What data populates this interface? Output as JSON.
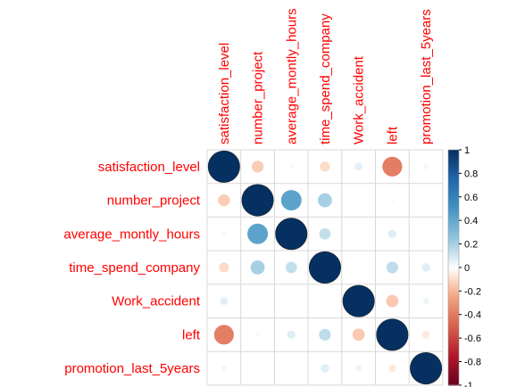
{
  "chart_data": {
    "type": "heatmap",
    "style": "corrplot-circle",
    "variables": [
      "satisfaction_level",
      "number_project",
      "average_montly_hours",
      "time_spend_company",
      "Work_accident",
      "left",
      "promotion_last_5years"
    ],
    "matrix": [
      [
        1.0,
        -0.14,
        0.02,
        -0.1,
        0.06,
        -0.39,
        0.03
      ],
      [
        -0.14,
        1.0,
        0.42,
        0.2,
        0.0,
        0.02,
        -0.01
      ],
      [
        0.02,
        0.42,
        1.0,
        0.13,
        -0.01,
        0.07,
        0.0
      ],
      [
        -0.1,
        0.2,
        0.13,
        1.0,
        0.0,
        0.14,
        0.07
      ],
      [
        0.06,
        0.0,
        -0.01,
        0.0,
        1.0,
        -0.15,
        0.04
      ],
      [
        -0.39,
        0.02,
        0.07,
        0.14,
        -0.15,
        1.0,
        -0.06
      ],
      [
        0.03,
        -0.01,
        0.0,
        0.07,
        0.04,
        -0.06,
        1.0
      ]
    ],
    "colorbar": {
      "min": -1,
      "max": 1,
      "ticks": [
        "1",
        "0.8",
        "0.6",
        "0.4",
        "0.2",
        "0",
        "-0.2",
        "-0.4",
        "-0.6",
        "-0.8",
        "-1"
      ],
      "tick_values": [
        1,
        0.8,
        0.6,
        0.4,
        0.2,
        0,
        -0.2,
        -0.4,
        -0.6,
        -0.8,
        -1
      ],
      "placement": "right"
    },
    "label_color": "#ff0000",
    "grid": true,
    "colors": {
      "negative_end": "#67001F",
      "positive_end": "#053061",
      "midpoint": "#FFFFFF",
      "grid_line": "#D9D9D9"
    }
  }
}
